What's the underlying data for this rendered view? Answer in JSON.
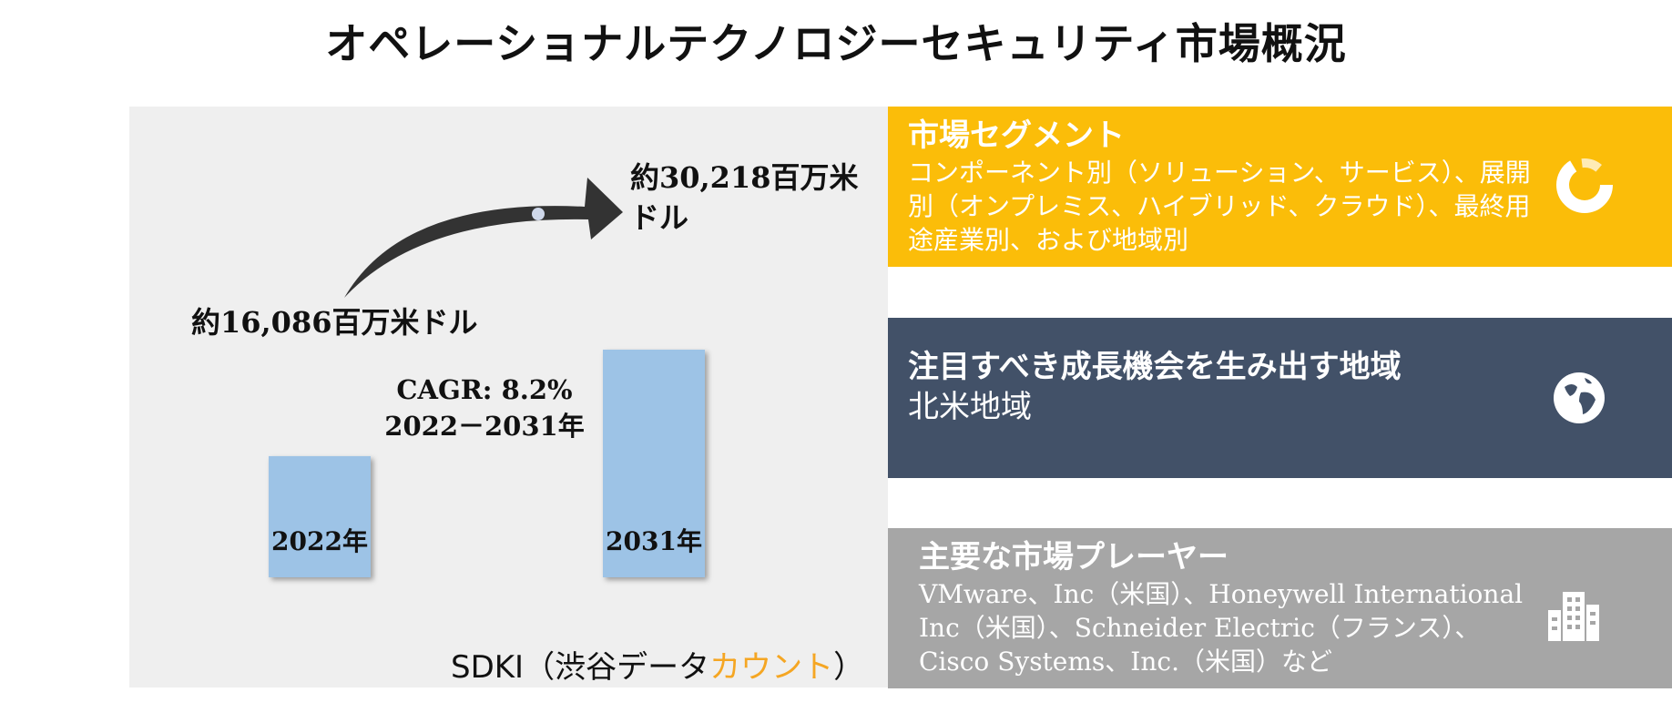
{
  "title": "オペレーショナルテクノロジーセキュリティ市場概況",
  "chart_data": {
    "type": "bar",
    "categories": [
      "2022年",
      "2031年"
    ],
    "values": [
      16086,
      30218
    ],
    "value_labels": [
      "約16,086百万米ドル",
      "約30,218百万米ドル"
    ],
    "cagr_text": "CAGR: 8.2%",
    "period_text": "2022－2031年",
    "bar_color": "#9dc3e6"
  },
  "brand": {
    "prefix": "SDKI（渋谷データ",
    "accent": "カウント",
    "suffix": "）",
    "accent_color": "#f5a623"
  },
  "segment": {
    "heading": "市場セグメント",
    "body": "コンポーネント別（ソリューション、サービス）、展開別（オンプレミス、ハイブリッド、クラウド）、最終用途産業別、および地域別",
    "icon": "donut-chart-icon",
    "color": "#fbbd09"
  },
  "region": {
    "heading": "注目すべき成長機会を生み出す地域",
    "body": "北米地域",
    "icon": "globe-icon",
    "color": "#425168"
  },
  "players": {
    "heading": "主要な市場プレーヤー",
    "body": "VMware、Inc（米国）、Honeywell International Inc（米国）、Schneider Electric（フランス）、Cisco Systems、Inc.（米国）など",
    "icon": "buildings-icon",
    "color": "#a6a6a6"
  }
}
